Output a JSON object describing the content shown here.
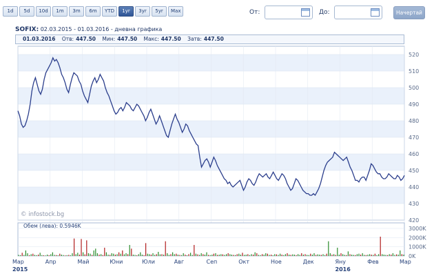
{
  "toolbar": {
    "ranges": [
      "1d",
      "5d",
      "10d",
      "1m",
      "3m",
      "6m",
      "YTD",
      "1yr",
      "3yr",
      "5yr",
      "Max"
    ],
    "active_range": "1yr",
    "from_label": "От:",
    "to_label": "До:",
    "from_value": "",
    "to_value": "",
    "submit_label": "Начертай"
  },
  "header": {
    "name": "SOFIX:",
    "period": "02.03.2015 - 01.03.2016 - дневна графика"
  },
  "info": {
    "date": "01.03.2016",
    "open_label": "Отв:",
    "open": "447.50",
    "min_label": "Мин:",
    "min": "447.50",
    "max_label": "Макс:",
    "max": "447.50",
    "close_label": "Затв:",
    "close": "447.50"
  },
  "copyright": "© infostock.bg",
  "volume_label": "Обем (лева): 0.5946K",
  "colors": {
    "line": "#2b3e8c",
    "up": "#2a8a2a",
    "down": "#b01c1c",
    "band": "#eaf1fb"
  },
  "chart_data": {
    "type": "line",
    "series": [
      {
        "values": [
          486,
          483,
          478,
          476,
          477,
          480,
          484,
          490,
          498,
          503,
          506,
          502,
          498,
          496,
          499,
          505,
          509,
          511,
          513,
          515,
          518,
          516,
          517,
          515,
          512,
          508,
          506,
          503,
          499,
          497,
          502,
          506,
          509,
          508,
          507,
          504,
          502,
          498,
          495,
          493,
          491,
          496,
          501,
          504,
          506,
          503,
          505,
          508,
          506,
          504,
          500,
          497,
          495,
          492,
          489,
          486,
          484,
          485,
          487,
          488,
          486,
          488,
          491,
          490,
          489,
          487,
          486,
          488,
          490,
          489,
          487,
          485,
          483,
          480,
          482,
          485,
          487,
          484,
          481,
          478,
          480,
          483,
          480,
          477,
          474,
          471,
          470,
          474,
          478,
          481,
          484,
          481,
          479,
          476,
          473,
          475,
          478,
          477,
          474,
          472,
          470,
          468,
          466,
          465,
          458,
          452,
          454,
          456,
          457,
          455,
          452,
          455,
          458,
          456,
          453,
          451,
          449,
          447,
          445,
          444,
          442,
          443,
          441,
          440,
          441,
          442,
          443,
          444,
          441,
          438,
          440,
          443,
          445,
          444,
          442,
          441,
          443,
          446,
          448,
          447,
          446,
          447,
          448,
          446,
          445,
          447,
          449,
          447,
          445,
          444,
          446,
          448,
          447,
          445,
          442,
          440,
          438,
          439,
          442,
          445,
          444,
          442,
          440,
          438,
          437,
          436,
          436,
          435,
          435,
          436,
          435,
          437,
          439,
          442,
          446,
          450,
          453,
          455,
          456,
          457,
          458,
          461,
          460,
          459,
          458,
          457,
          456,
          457,
          458,
          455,
          452,
          450,
          447,
          444,
          444,
          443,
          445,
          446,
          446,
          444,
          447,
          450,
          454,
          453,
          451,
          449,
          448,
          448,
          446,
          445,
          445,
          446,
          448,
          447,
          446,
          445,
          445,
          447,
          446,
          444,
          445,
          447
        ],
        "color": "#2b3e8c"
      }
    ],
    "ylim": [
      420,
      525
    ],
    "yticks": [
      "520",
      "510",
      "500",
      "490",
      "480",
      "470",
      "460",
      "450",
      "440",
      "430",
      "420"
    ],
    "x_labels": [
      "Мар",
      "Апр",
      "Май",
      "Юни",
      "Юли",
      "Авг",
      "Сеп",
      "Окт",
      "Ное",
      "Дек",
      "Яну",
      "Фев",
      "Мар"
    ],
    "x_year_labels": [
      {
        "after": 0,
        "text": "2015"
      },
      {
        "after": 10,
        "text": "2016"
      }
    ],
    "volume": {
      "ylim": [
        0,
        3000
      ],
      "yticks": [
        "3000K",
        "2000K",
        "1000K",
        "0K"
      ],
      "values": [
        120,
        90,
        350,
        120,
        600,
        300,
        80,
        200,
        250,
        120,
        90,
        150,
        350,
        100,
        80,
        60,
        150,
        90,
        200,
        400,
        120,
        100,
        80,
        250,
        150,
        100,
        60,
        90,
        120,
        80,
        300,
        1900,
        200,
        350,
        150,
        1850,
        400,
        180,
        1700,
        300,
        250,
        120,
        600,
        800,
        300,
        150,
        200,
        100,
        900,
        400,
        150,
        120,
        300,
        250,
        150,
        200,
        400,
        250,
        600,
        180,
        300,
        200,
        1200,
        800,
        150,
        120,
        80,
        200,
        400,
        150,
        100,
        1400,
        250,
        200,
        150,
        300,
        120,
        200,
        450,
        180,
        200,
        150,
        1600,
        300,
        120,
        200,
        400,
        200,
        250,
        150,
        120,
        100,
        300,
        150,
        80,
        200,
        350,
        120,
        1200,
        250,
        180,
        120,
        300,
        200,
        150,
        400,
        120,
        100,
        150,
        250,
        300,
        120,
        150,
        200,
        180,
        120,
        200,
        300,
        200,
        150,
        120,
        100,
        200,
        250,
        150,
        350,
        120,
        150,
        200,
        100,
        200,
        150,
        400,
        300,
        120,
        100,
        200,
        150,
        300,
        250,
        120,
        150,
        80,
        200,
        180,
        120,
        250,
        150,
        100,
        200,
        300,
        150,
        120,
        180,
        150,
        100,
        200,
        120,
        300,
        150,
        200,
        120,
        100,
        250,
        150,
        300,
        120,
        180,
        150,
        120,
        200,
        100,
        250,
        1600,
        300,
        150,
        200,
        120,
        900,
        150,
        300,
        200,
        120,
        100,
        500,
        200,
        150,
        120,
        100,
        200,
        250,
        150,
        300,
        120,
        100,
        150,
        200,
        150,
        120,
        250,
        100,
        200,
        2100,
        200,
        150,
        120,
        100,
        200,
        150,
        300,
        120,
        180,
        150,
        600,
        200,
        150
      ],
      "up": [
        true,
        true,
        false,
        true,
        true,
        true,
        false,
        true,
        false,
        true,
        true,
        false,
        true,
        true,
        false,
        true,
        true,
        false,
        true,
        true,
        true,
        false,
        true,
        false,
        true,
        true,
        false,
        true,
        false,
        true,
        true,
        false,
        true,
        true,
        false,
        false,
        true,
        false,
        false,
        true,
        true,
        false,
        true,
        true,
        true,
        false,
        true,
        false,
        false,
        true,
        true,
        false,
        true,
        true,
        false,
        true,
        false,
        true,
        false,
        true,
        true,
        false,
        true,
        false,
        true,
        true,
        false,
        true,
        true,
        true,
        false,
        false,
        true,
        true,
        false,
        true,
        true,
        false,
        true,
        true,
        false,
        true,
        false,
        true,
        true,
        false,
        true,
        true,
        false,
        true,
        false,
        true,
        true,
        false,
        true,
        false,
        true,
        true,
        false,
        true,
        false,
        true,
        true,
        false,
        true,
        true,
        false,
        true,
        true,
        false,
        true,
        false,
        true,
        true,
        false,
        true,
        true,
        false,
        true,
        true,
        false,
        true,
        false,
        true,
        true,
        false,
        true,
        true,
        false,
        true,
        true,
        false,
        true,
        false,
        true,
        true,
        false,
        true,
        true,
        false,
        true,
        false,
        true,
        true,
        false,
        true,
        true,
        false,
        true,
        true,
        false,
        true,
        false,
        true,
        true,
        false,
        true,
        true,
        false,
        true,
        false,
        true,
        true,
        false,
        true,
        true,
        false,
        true,
        true,
        false,
        true,
        true,
        false,
        true,
        true,
        false,
        true,
        false,
        true,
        true,
        false,
        true,
        true,
        false,
        true,
        false,
        true,
        true,
        false,
        true,
        true,
        false,
        true,
        true,
        false,
        true,
        true,
        false,
        true,
        false,
        true,
        true,
        false,
        true,
        true,
        true,
        false,
        true,
        false,
        true,
        true,
        false,
        true,
        true,
        false,
        true,
        true,
        false,
        true,
        false
      ]
    }
  }
}
